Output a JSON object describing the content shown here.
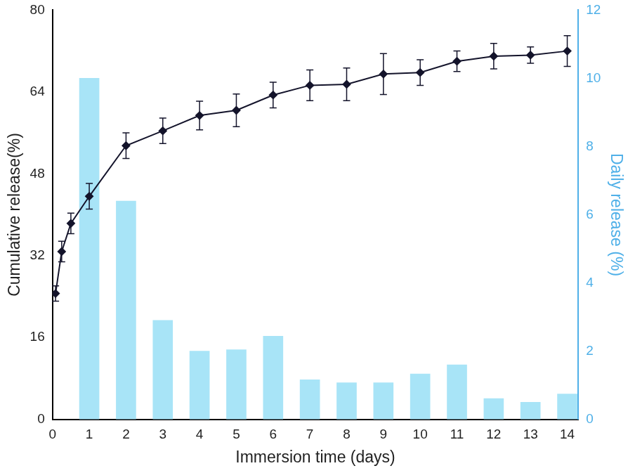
{
  "chart_data": {
    "type": "bar",
    "x_label": "Immersion time (days)",
    "y_label": "Cumulative release(%)",
    "y2_label": "Daily release (%)",
    "xlim": [
      0,
      14.3
    ],
    "xticks": [
      0,
      1,
      2,
      3,
      4,
      5,
      6,
      7,
      8,
      9,
      10,
      11,
      12,
      13,
      14
    ],
    "ylim": [
      0,
      80
    ],
    "yticks": [
      0,
      16,
      32,
      48,
      64,
      80
    ],
    "y2lim": [
      0,
      12
    ],
    "y2ticks": [
      0,
      2,
      4,
      6,
      8,
      10,
      12
    ],
    "grid": false,
    "series": [
      {
        "type": "bar",
        "axis": "y2",
        "color": "#a8e4f7",
        "x": [
          1,
          2,
          3,
          4,
          5,
          6,
          7,
          8,
          9,
          10,
          11,
          12,
          13,
          14
        ],
        "values": [
          10.0,
          6.4,
          2.9,
          2.0,
          2.04,
          2.44,
          1.16,
          1.07,
          1.07,
          1.33,
          1.6,
          0.61,
          0.5,
          0.74
        ]
      },
      {
        "type": "line",
        "color": "#14142b",
        "marker": "diamond",
        "line_style": "solid",
        "x": [
          0.083,
          0.25,
          0.5,
          1,
          2,
          3,
          4,
          5,
          6,
          7,
          8,
          9,
          10,
          11,
          12,
          13,
          14
        ],
        "values": [
          24.6,
          32.8,
          38.3,
          43.6,
          53.5,
          56.4,
          59.4,
          60.4,
          63.4,
          65.3,
          65.5,
          67.5,
          67.8,
          70.0,
          71.0,
          71.2,
          72.0
        ],
        "errors": [
          1.5,
          2.0,
          2.0,
          2.5,
          2.5,
          2.5,
          2.8,
          3.2,
          2.5,
          3.0,
          3.2,
          4.0,
          2.5,
          2.0,
          2.5,
          1.6,
          3.0
        ]
      }
    ]
  }
}
